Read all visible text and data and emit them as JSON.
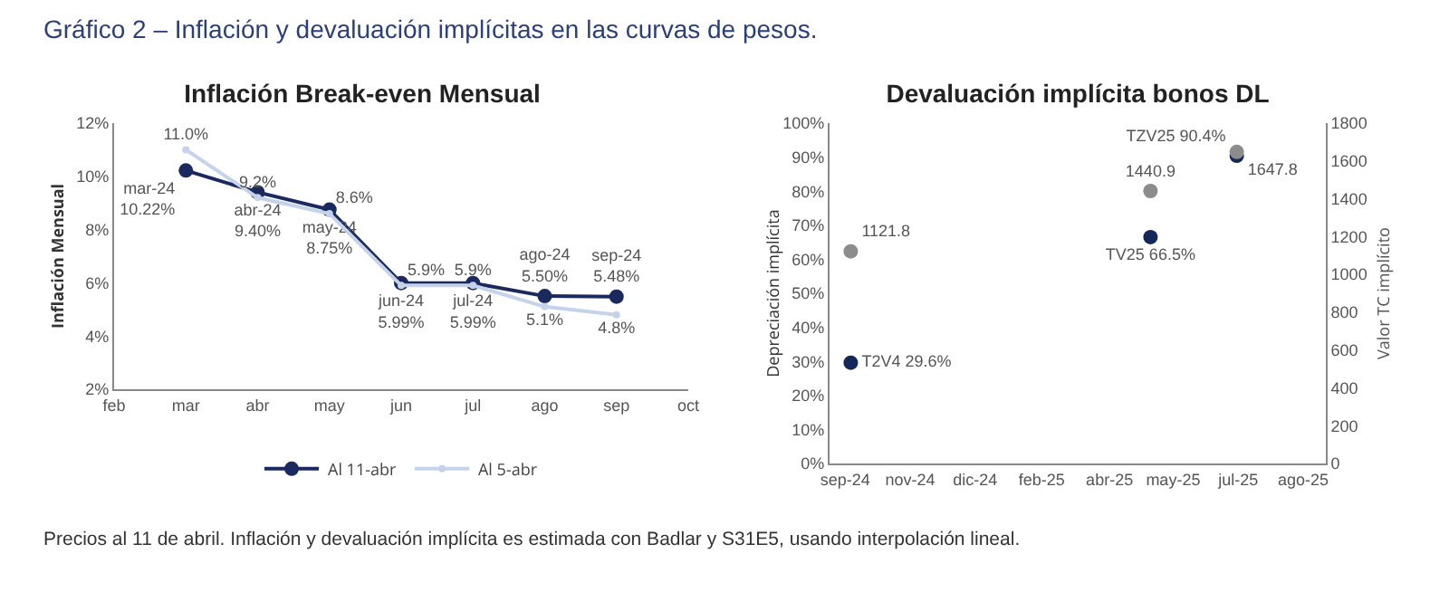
{
  "chart_data": [
    {
      "type": "line",
      "title": "Inflación Break-even Mensual",
      "ylabel": "Inflación Mensual",
      "annotations": [
        "Gráfico 2 – Inflación y devaluación implícitas en las curvas de pesos."
      ],
      "categories": [
        "feb",
        "mar",
        "abr",
        "may",
        "jun",
        "jul",
        "ago",
        "sep",
        "oct"
      ],
      "series": [
        {
          "name": "Al 11-abr",
          "color": "#1b2a5e",
          "values": [
            null,
            10.22,
            9.4,
            8.75,
            5.99,
            5.99,
            5.5,
            5.48,
            null
          ],
          "value_labels": [
            null,
            "mar-24\n10.22%",
            "abr-24\n9.40%",
            "may-24\n8.75%",
            "jun-24\n5.99%",
            "jul-24\n5.99%",
            "ago-24\n5.50%",
            "sep-24\n5.48%",
            null
          ]
        },
        {
          "name": "Al 5-abr",
          "color": "#c5d3ea",
          "values": [
            null,
            11.0,
            9.2,
            8.6,
            5.9,
            5.9,
            5.1,
            4.8,
            null
          ],
          "value_labels": [
            null,
            "11.0%",
            "9.2%",
            "8.6%",
            "5.9%",
            "5.9%",
            "5.1%",
            "4.8%",
            null
          ]
        }
      ],
      "ylim": [
        2,
        12
      ],
      "yticks": [
        {
          "value": 2,
          "label": "2%"
        },
        {
          "value": 4,
          "label": "4%"
        },
        {
          "value": 6,
          "label": "6%"
        },
        {
          "value": 8,
          "label": "8%"
        },
        {
          "value": 10,
          "label": "10%"
        },
        {
          "value": 12,
          "label": "12%"
        }
      ],
      "grid": false,
      "legend": "bottom",
      "marker": "circle"
    },
    {
      "type": "scatter",
      "title": "Devaluación implícita bonos DL",
      "ylabel": "Depreciación implícita",
      "y2label": "Valor TC implícito",
      "annotations": [
        "Precios al 11 de abril. Inflación y devaluación implícita es estimada con Badlar y S31E5, usando interpolación lineal."
      ],
      "x": [
        "2024-09-30",
        "2025-04-30",
        "2025-06-30"
      ],
      "series": [
        {
          "color": "#14285a",
          "values": [
            29.6,
            66.5,
            90.4
          ],
          "value_labels": [
            "T2V4 29.6%",
            "TV25 66.5%",
            "TZV25 90.4%"
          ]
        },
        {
          "color": "#8c8c8c",
          "axis": "y2",
          "values": [
            1121.8,
            1440.9,
            1647.8
          ],
          "value_labels": [
            "1121.8",
            "1440.9",
            "1647.8"
          ]
        }
      ],
      "xlim": [
        "2024-09-15",
        "2025-09-01"
      ],
      "xticks": [
        {
          "value": "2024-09-26",
          "label": "sep-24"
        },
        {
          "value": "2024-11-11",
          "label": "nov-24"
        },
        {
          "value": "2024-12-27",
          "label": "dic-24"
        },
        {
          "value": "2025-02-12",
          "label": "feb-25"
        },
        {
          "value": "2025-04-01",
          "label": "abr-25"
        },
        {
          "value": "2025-05-16",
          "label": "may-25"
        },
        {
          "value": "2025-07-01",
          "label": "jul-25"
        },
        {
          "value": "2025-08-16",
          "label": "ago-25"
        }
      ],
      "ylim": [
        0,
        100
      ],
      "yticks": [
        {
          "value": 0,
          "label": "0%"
        },
        {
          "value": 10,
          "label": "10%"
        },
        {
          "value": 20,
          "label": "20%"
        },
        {
          "value": 30,
          "label": "30%"
        },
        {
          "value": 40,
          "label": "40%"
        },
        {
          "value": 50,
          "label": "50%"
        },
        {
          "value": 60,
          "label": "60%"
        },
        {
          "value": 70,
          "label": "70%"
        },
        {
          "value": 80,
          "label": "80%"
        },
        {
          "value": 90,
          "label": "90%"
        },
        {
          "value": 100,
          "label": "100%"
        }
      ],
      "y2lim": [
        0,
        1800
      ],
      "y2ticks": [
        0,
        200,
        400,
        600,
        800,
        1000,
        1200,
        1400,
        1600,
        1800
      ],
      "grid": false,
      "legend": false,
      "marker": "circle"
    }
  ]
}
